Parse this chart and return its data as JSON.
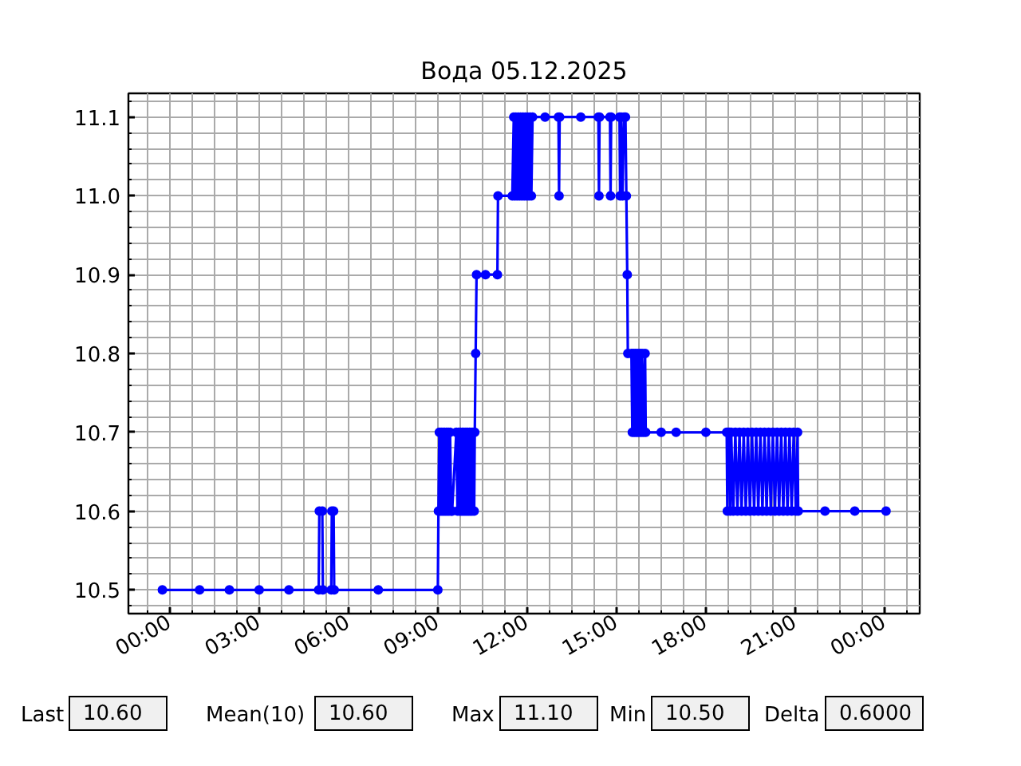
{
  "chart_data": {
    "type": "line",
    "title": "Вода 05.12.2025",
    "x": [
      -0.25,
      1,
      2,
      3,
      4,
      5.0,
      5.02,
      5.12,
      5.14,
      5.42,
      5.44,
      5.5,
      5.52,
      7,
      9.0,
      9.02,
      9.05,
      9.08,
      9.11,
      9.14,
      9.17,
      9.2,
      9.23,
      9.26,
      9.29,
      9.32,
      9.35,
      9.38,
      9.41,
      9.45,
      9.48,
      9.62,
      9.66,
      9.7,
      9.73,
      9.76,
      9.79,
      9.82,
      9.85,
      9.88,
      9.91,
      9.94,
      9.97,
      10.0,
      10.03,
      10.06,
      10.09,
      10.12,
      10.15,
      10.18,
      10.22,
      10.24,
      10.27,
      10.3,
      10.6,
      11.0,
      11.02,
      11.5,
      11.55,
      11.58,
      11.62,
      11.66,
      11.7,
      11.74,
      11.78,
      11.82,
      11.86,
      11.9,
      11.94,
      11.98,
      12.02,
      12.06,
      12.1,
      12.14,
      12.18,
      12.6,
      13.05,
      13.07,
      13.09,
      13.8,
      14.39,
      14.41,
      14.43,
      14.78,
      14.8,
      14.82,
      15.1,
      15.12,
      15.15,
      15.2,
      15.25,
      15.3,
      15.33,
      15.36,
      15.38,
      15.5,
      15.53,
      15.56,
      15.6,
      15.63,
      15.67,
      15.7,
      15.74,
      15.78,
      15.82,
      15.86,
      15.9,
      15.96,
      15.98,
      16.5,
      17,
      18,
      18.7,
      18.72,
      18.75,
      18.8,
      18.82,
      18.85,
      18.92,
      18.99,
      19.06,
      19.13,
      19.2,
      19.27,
      19.34,
      19.41,
      19.48,
      19.55,
      19.62,
      19.69,
      19.76,
      19.83,
      19.9,
      19.97,
      20.04,
      20.11,
      20.18,
      20.25,
      20.32,
      20.39,
      20.46,
      20.53,
      20.6,
      20.67,
      20.74,
      20.81,
      20.88,
      20.95,
      21.02,
      21.08,
      21.1,
      22,
      23,
      24.05
    ],
    "series": [
      {
        "color": "#0000ff",
        "values": [
          10.5,
          10.5,
          10.5,
          10.5,
          10.5,
          10.5,
          10.6,
          10.6,
          10.5,
          10.5,
          10.6,
          10.6,
          10.5,
          10.5,
          10.5,
          10.6,
          10.7,
          10.6,
          10.7,
          10.6,
          10.7,
          10.6,
          10.7,
          10.6,
          10.7,
          10.6,
          10.7,
          10.6,
          10.7,
          10.6,
          10.6,
          10.7,
          10.6,
          10.7,
          10.6,
          10.7,
          10.6,
          10.7,
          10.6,
          10.7,
          10.6,
          10.7,
          10.6,
          10.7,
          10.6,
          10.7,
          10.6,
          10.7,
          10.6,
          10.7,
          10.6,
          10.7,
          10.8,
          10.9,
          10.9,
          10.9,
          11.0,
          11.0,
          11.1,
          11.0,
          11.1,
          11.0,
          11.1,
          11.0,
          11.1,
          11.0,
          11.1,
          11.0,
          11.1,
          11.0,
          11.1,
          11.0,
          11.1,
          11.0,
          11.1,
          11.1,
          11.1,
          11.0,
          11.1,
          11.1,
          11.1,
          11.0,
          11.1,
          11.1,
          11.0,
          11.1,
          11.1,
          11.0,
          11.1,
          11.0,
          11.1,
          11.1,
          11.0,
          10.9,
          10.8,
          10.8,
          10.7,
          10.8,
          10.7,
          10.8,
          10.7,
          10.8,
          10.7,
          10.8,
          10.7,
          10.8,
          10.7,
          10.8,
          10.7,
          10.7,
          10.7,
          10.7,
          10.7,
          10.6,
          10.7,
          10.7,
          10.6,
          10.7,
          10.6,
          10.7,
          10.6,
          10.7,
          10.6,
          10.7,
          10.6,
          10.7,
          10.6,
          10.7,
          10.6,
          10.7,
          10.6,
          10.7,
          10.6,
          10.7,
          10.6,
          10.7,
          10.6,
          10.7,
          10.6,
          10.7,
          10.6,
          10.7,
          10.6,
          10.7,
          10.6,
          10.7,
          10.6,
          10.7,
          10.6,
          10.7,
          10.6,
          10.6,
          10.6,
          10.6
        ]
      }
    ],
    "xlim": [
      -1.39,
      25.18
    ],
    "ylim": [
      10.47,
      11.13
    ],
    "xticks": [
      {
        "value": 0,
        "label": "00:00"
      },
      {
        "value": 3,
        "label": "03:00"
      },
      {
        "value": 6,
        "label": "06:00"
      },
      {
        "value": 9,
        "label": "09:00"
      },
      {
        "value": 12,
        "label": "12:00"
      },
      {
        "value": 15,
        "label": "15:00"
      },
      {
        "value": 18,
        "label": "18:00"
      },
      {
        "value": 21,
        "label": "21:00"
      },
      {
        "value": 24,
        "label": "00:00"
      }
    ],
    "yticks": [
      {
        "value": 10.5,
        "label": "10.5"
      },
      {
        "value": 10.6,
        "label": "10.6"
      },
      {
        "value": 10.7,
        "label": "10.7"
      },
      {
        "value": 10.8,
        "label": "10.8"
      },
      {
        "value": 10.9,
        "label": "10.9"
      },
      {
        "value": 11.0,
        "label": "11.0"
      },
      {
        "value": 11.1,
        "label": "11.1"
      }
    ],
    "grid": true,
    "marker": "circle",
    "line_style": "solid",
    "annotations": [
      "Last",
      "10.60",
      "Mean(10)",
      "10.60",
      "Max",
      "11.10",
      "Min",
      "10.50",
      "Delta",
      "0.6000"
    ]
  }
}
